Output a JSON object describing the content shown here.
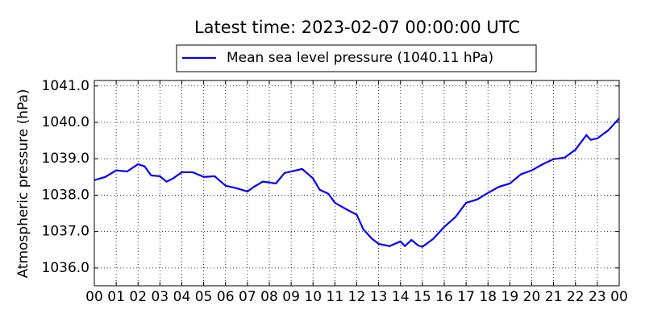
{
  "chart_data": {
    "type": "line",
    "title": "Latest time: 2023-02-07 00:00:00 UTC",
    "y_label": "Atmospheric pressure (hPa)",
    "legend_position": "top-outside",
    "grid": true,
    "x": [
      0,
      0.5,
      1,
      1.5,
      2,
      2.3,
      2.6,
      3,
      3.3,
      3.6,
      4,
      4.5,
      5,
      5.5,
      6,
      6.5,
      7,
      7.3,
      7.7,
      8,
      8.3,
      8.7,
      9,
      9.5,
      10,
      10.3,
      10.7,
      11,
      11.5,
      12,
      12.3,
      12.7,
      13,
      13.5,
      14,
      14.2,
      14.5,
      14.8,
      15,
      15.5,
      16,
      16.5,
      17,
      17.5,
      18,
      18.5,
      19,
      19.5,
      20,
      20.5,
      21,
      21.5,
      22,
      22.5,
      22.7,
      23,
      23.5,
      24
    ],
    "series": [
      {
        "name": "Mean sea level pressure (1040.11 hPa)",
        "color": "#0000ff",
        "values": [
          1038.41,
          1038.5,
          1038.68,
          1038.65,
          1038.85,
          1038.79,
          1038.54,
          1038.52,
          1038.37,
          1038.46,
          1038.63,
          1038.63,
          1038.5,
          1038.52,
          1038.26,
          1038.19,
          1038.1,
          1038.23,
          1038.37,
          1038.35,
          1038.32,
          1038.61,
          1038.65,
          1038.72,
          1038.46,
          1038.15,
          1038.04,
          1037.79,
          1037.62,
          1037.46,
          1037.06,
          1036.8,
          1036.66,
          1036.6,
          1036.73,
          1036.6,
          1036.77,
          1036.62,
          1036.58,
          1036.8,
          1037.13,
          1037.39,
          1037.79,
          1037.88,
          1038.06,
          1038.23,
          1038.32,
          1038.57,
          1038.68,
          1038.85,
          1038.99,
          1039.03,
          1039.25,
          1039.65,
          1039.52,
          1039.56,
          1039.78,
          1040.11
        ]
      }
    ],
    "xlim": [
      0,
      24
    ],
    "xticks": [
      {
        "value": 0,
        "label": "00"
      },
      {
        "value": 1,
        "label": "01"
      },
      {
        "value": 2,
        "label": "02"
      },
      {
        "value": 3,
        "label": "03"
      },
      {
        "value": 4,
        "label": "04"
      },
      {
        "value": 5,
        "label": "05"
      },
      {
        "value": 6,
        "label": "06"
      },
      {
        "value": 7,
        "label": "07"
      },
      {
        "value": 8,
        "label": "08"
      },
      {
        "value": 9,
        "label": "09"
      },
      {
        "value": 10,
        "label": "10"
      },
      {
        "value": 11,
        "label": "11"
      },
      {
        "value": 12,
        "label": "12"
      },
      {
        "value": 13,
        "label": "13"
      },
      {
        "value": 14,
        "label": "14"
      },
      {
        "value": 15,
        "label": "15"
      },
      {
        "value": 16,
        "label": "16"
      },
      {
        "value": 17,
        "label": "17"
      },
      {
        "value": 18,
        "label": "18"
      },
      {
        "value": 19,
        "label": "19"
      },
      {
        "value": 20,
        "label": "20"
      },
      {
        "value": 21,
        "label": "21"
      },
      {
        "value": 22,
        "label": "22"
      },
      {
        "value": 23,
        "label": "23"
      },
      {
        "value": 24,
        "label": "00"
      }
    ],
    "ylim": [
      1035.51,
      1041.15
    ],
    "yticks": [
      {
        "value": 1036,
        "label": "1036.0"
      },
      {
        "value": 1037,
        "label": "1037.0"
      },
      {
        "value": 1038,
        "label": "1038.0"
      },
      {
        "value": 1039,
        "label": "1039.0"
      },
      {
        "value": 1040,
        "label": "1040.0"
      },
      {
        "value": 1041,
        "label": "1041.0"
      }
    ]
  }
}
